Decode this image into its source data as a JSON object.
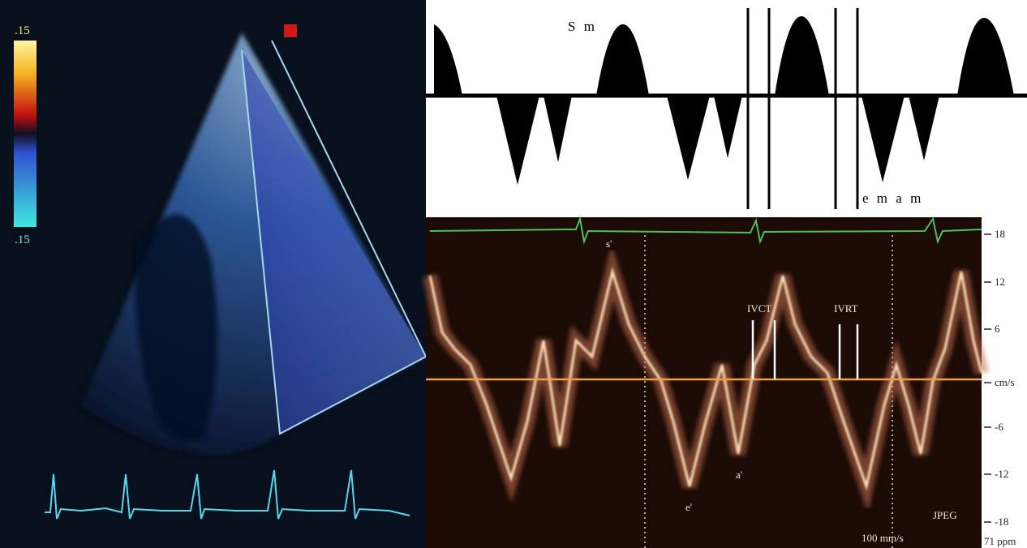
{
  "ultrasound": {
    "scale_top": ".15",
    "scale_bottom": ".15"
  },
  "schematic": {
    "systolic_label": "S m",
    "diastolic_label": "e m a m"
  },
  "doppler": {
    "scale": [
      "18",
      "12",
      "6",
      "cm/s",
      "-6",
      "-12",
      "-18"
    ],
    "labels": {
      "s": "s'",
      "ivct": "IVCT",
      "ivrt": "IVRT",
      "a": "a'",
      "e": "e'",
      "sweep": "100 mm/s",
      "format": "JPEG",
      "rate": "71 ppm"
    }
  }
}
